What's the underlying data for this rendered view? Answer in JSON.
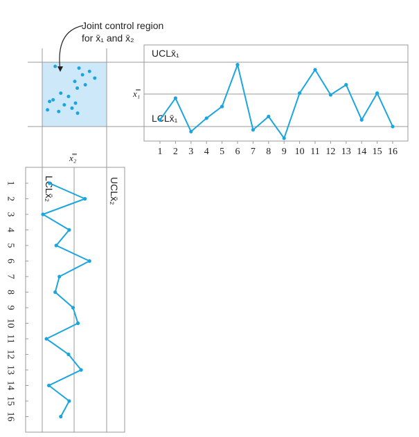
{
  "annotation": {
    "line1": "Joint control region",
    "line2": "for x̄₁ and x̄₂"
  },
  "axis_symbols": {
    "x1bar": "x̿₁",
    "x2bar": "x̿₂"
  },
  "chart_data": [
    {
      "type": "line",
      "name": "x1bar-chart",
      "x": [
        1,
        2,
        3,
        4,
        5,
        6,
        7,
        8,
        9,
        10,
        11,
        12,
        13,
        14,
        15,
        16
      ],
      "values": [
        3.4,
        6.0,
        2.0,
        3.6,
        5.0,
        10.0,
        2.2,
        3.8,
        1.2,
        6.6,
        9.4,
        6.4,
        7.6,
        3.4,
        6.6,
        2.6
      ],
      "tick_labels": [
        "1",
        "2",
        "3",
        "4",
        "5",
        "6",
        "7",
        "8",
        "9",
        "10",
        "11",
        "12",
        "13",
        "14",
        "15",
        "16"
      ],
      "ucl_label": "UCLx̄₁",
      "lcl_label": "LCLx̄₁",
      "ylabel": "x̿₁",
      "ylim": [
        -5,
        12.5
      ],
      "ucl": 10.3,
      "lcl": 2.6,
      "center": 5.4,
      "color": "#1aa5e0"
    },
    {
      "type": "line",
      "name": "x2bar-chart",
      "x": [
        1,
        2,
        3,
        4,
        5,
        6,
        7,
        8,
        9,
        10,
        11,
        12,
        13,
        14,
        15,
        16
      ],
      "values": [
        2.6,
        12.7,
        0.7,
        8.2,
        4.5,
        14.0,
        5.4,
        4.2,
        9.3,
        10.7,
        1.7,
        8.0,
        11.6,
        2.4,
        8.2,
        5.8
      ],
      "tick_labels": [
        "1",
        "2",
        "3",
        "4",
        "5",
        "6",
        "7",
        "8",
        "9",
        "10",
        "11",
        "12",
        "13",
        "14",
        "15",
        "16"
      ],
      "ucl_label": "UCLx̄₂",
      "lcl_label": "LCLx̄₂",
      "xlabel": "x̿₂",
      "xlim": [
        -2,
        24
      ],
      "ucl": 18.9,
      "lcl": 0.5,
      "center": 8.2,
      "color": "#1aa5e0"
    },
    {
      "type": "scatter",
      "name": "joint-control-region",
      "points": [
        {
          "x2": 4.2,
          "x1": 9.8
        },
        {
          "x2": 11.0,
          "x1": 9.6
        },
        {
          "x2": 14.0,
          "x1": 9.2
        },
        {
          "x2": 12.0,
          "x1": 8.8
        },
        {
          "x2": 15.5,
          "x1": 8.4
        },
        {
          "x2": 9.8,
          "x1": 8.0
        },
        {
          "x2": 12.8,
          "x1": 7.6
        },
        {
          "x2": 10.5,
          "x1": 7.2
        },
        {
          "x2": 5.8,
          "x1": 6.6
        },
        {
          "x2": 8.0,
          "x1": 6.2
        },
        {
          "x2": 2.6,
          "x1": 5.6
        },
        {
          "x2": 3.6,
          "x1": 5.8
        },
        {
          "x2": 6.8,
          "x1": 5.2
        },
        {
          "x2": 10.0,
          "x1": 5.4
        },
        {
          "x2": 9.0,
          "x1": 4.8
        },
        {
          "x2": 5.2,
          "x1": 4.4
        },
        {
          "x2": 10.6,
          "x1": 4.2
        },
        {
          "x2": 2.0,
          "x1": 4.6
        }
      ],
      "region_color": "#cde9f9",
      "point_color": "#1aa5e0"
    }
  ]
}
